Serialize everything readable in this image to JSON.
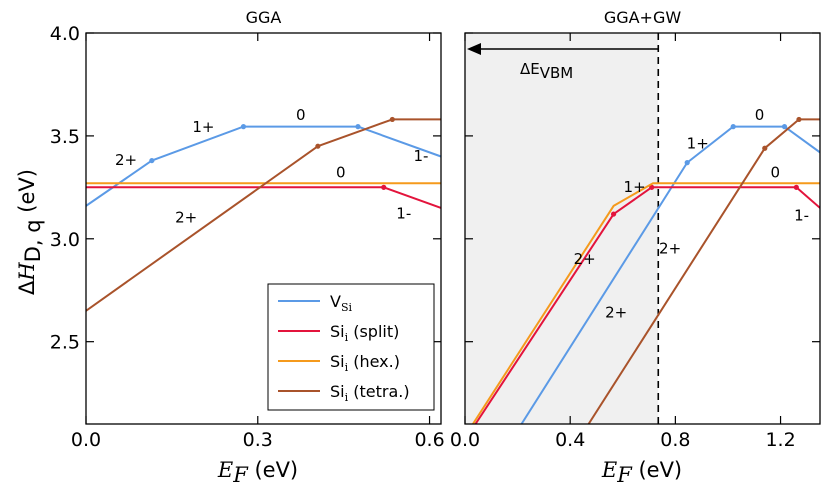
{
  "chart_data": [
    {
      "type": "line",
      "title": "GGA",
      "xlabel": "E_F (eV)",
      "ylabel": "ΔH_D,q (eV)",
      "xlim": [
        0.0,
        0.62
      ],
      "ylim": [
        2.1,
        4.0
      ],
      "xticks": [
        0.0,
        0.3,
        0.6
      ],
      "xtick_labels": [
        "0.0",
        "0.3",
        "0.6"
      ],
      "yticks": [
        2.5,
        3.0,
        3.5,
        4.0
      ],
      "ytick_labels": [
        "2.5",
        "3.0",
        "3.5",
        "4.0"
      ],
      "series": [
        {
          "name": "V_Si",
          "color": "#5b9ae6",
          "x": [
            0.0,
            0.115,
            0.275,
            0.475,
            0.62
          ],
          "y": [
            3.16,
            3.38,
            3.545,
            3.545,
            3.4
          ],
          "markers": [
            1,
            2,
            3
          ]
        },
        {
          "name": "Si_i (split)",
          "color": "#e3143c",
          "x": [
            0.0,
            0.52,
            0.62
          ],
          "y": [
            3.25,
            3.25,
            3.15
          ],
          "markers": [
            1
          ]
        },
        {
          "name": "Si_i (hex.)",
          "color": "#f59a1c",
          "x": [
            0.0,
            0.62
          ],
          "y": [
            3.27,
            3.27
          ],
          "markers": []
        },
        {
          "name": "Si_i (tetra.)",
          "color": "#a9532b",
          "x": [
            0.0,
            0.405,
            0.535,
            0.62
          ],
          "y": [
            2.65,
            3.45,
            3.58,
            3.58
          ],
          "markers": [
            1,
            2
          ]
        }
      ],
      "annotations": [
        {
          "text": "2+",
          "x": 0.07,
          "y": 3.38
        },
        {
          "text": "1+",
          "x": 0.205,
          "y": 3.54
        },
        {
          "text": "0",
          "x": 0.375,
          "y": 3.6
        },
        {
          "text": "1-",
          "x": 0.585,
          "y": 3.4
        },
        {
          "text": "0",
          "x": 0.445,
          "y": 3.32
        },
        {
          "text": "1-",
          "x": 0.555,
          "y": 3.12
        },
        {
          "text": "2+",
          "x": 0.175,
          "y": 3.1
        }
      ]
    },
    {
      "type": "line",
      "title": "GGA+GW",
      "xlabel": "E_F (eV)",
      "ylabel": "",
      "xlim": [
        0.0,
        1.35
      ],
      "ylim": [
        2.1,
        4.0
      ],
      "xticks": [
        0.0,
        0.4,
        0.8,
        1.2
      ],
      "xtick_labels": [
        "0.0",
        "0.4",
        "0.8",
        "1.2"
      ],
      "shaded_region": [
        0.0,
        0.735
      ],
      "vline_x": 0.735,
      "arrow_label": "ΔE_VBM",
      "series": [
        {
          "name": "V_Si",
          "color": "#5b9ae6",
          "x": [
            0.215,
            0.845,
            1.02,
            1.215,
            1.35
          ],
          "y": [
            2.1,
            3.37,
            3.545,
            3.545,
            3.42
          ],
          "markers": [
            1,
            2,
            3
          ]
        },
        {
          "name": "Si_i (split)",
          "color": "#e3143c",
          "x": [
            0.04,
            0.565,
            0.71,
            1.26,
            1.35
          ],
          "y": [
            2.1,
            3.12,
            3.25,
            3.25,
            3.15
          ],
          "markers": [
            1,
            2,
            3
          ]
        },
        {
          "name": "Si_i (hex.)",
          "color": "#f59a1c",
          "x": [
            0.03,
            0.565,
            0.715,
            1.35
          ],
          "y": [
            2.1,
            3.16,
            3.27,
            3.27
          ],
          "markers": []
        },
        {
          "name": "Si_i (tetra.)",
          "color": "#a9532b",
          "x": [
            0.47,
            1.14,
            1.27,
            1.35
          ],
          "y": [
            2.1,
            3.44,
            3.58,
            3.58
          ],
          "markers": [
            1,
            2
          ]
        }
      ],
      "annotations": [
        {
          "text": "1+",
          "x": 0.645,
          "y": 3.25
        },
        {
          "text": "2+",
          "x": 0.455,
          "y": 2.9
        },
        {
          "text": "2+",
          "x": 0.78,
          "y": 2.95
        },
        {
          "text": "2+",
          "x": 0.575,
          "y": 2.64
        },
        {
          "text": "1+",
          "x": 0.885,
          "y": 3.46
        },
        {
          "text": "0",
          "x": 1.12,
          "y": 3.6
        },
        {
          "text": "0",
          "x": 1.18,
          "y": 3.32
        },
        {
          "text": "1-",
          "x": 1.28,
          "y": 3.11
        }
      ]
    }
  ],
  "legend": {
    "location": "lower-right of left panel",
    "entries": [
      {
        "base": "V",
        "sub": "Si",
        "suffix": "",
        "color": "#5b9ae6"
      },
      {
        "base": "Si",
        "sub": "i",
        "suffix": " (split)",
        "color": "#e3143c"
      },
      {
        "base": "Si",
        "sub": "i",
        "suffix": " (hex.)",
        "color": "#f59a1c"
      },
      {
        "base": "Si",
        "sub": "i",
        "suffix": " (tetra.)",
        "color": "#a9532b"
      }
    ]
  },
  "ylabel_parts": {
    "delta": "Δ",
    "symbol": "H",
    "sub": "D, q",
    "unit": " (eV)"
  },
  "xlabel_parts": {
    "symbol": "E",
    "sub": "F",
    "unit": "  (eV)"
  },
  "arrow_label_parts": {
    "base": "ΔE",
    "sub": "VBM"
  }
}
